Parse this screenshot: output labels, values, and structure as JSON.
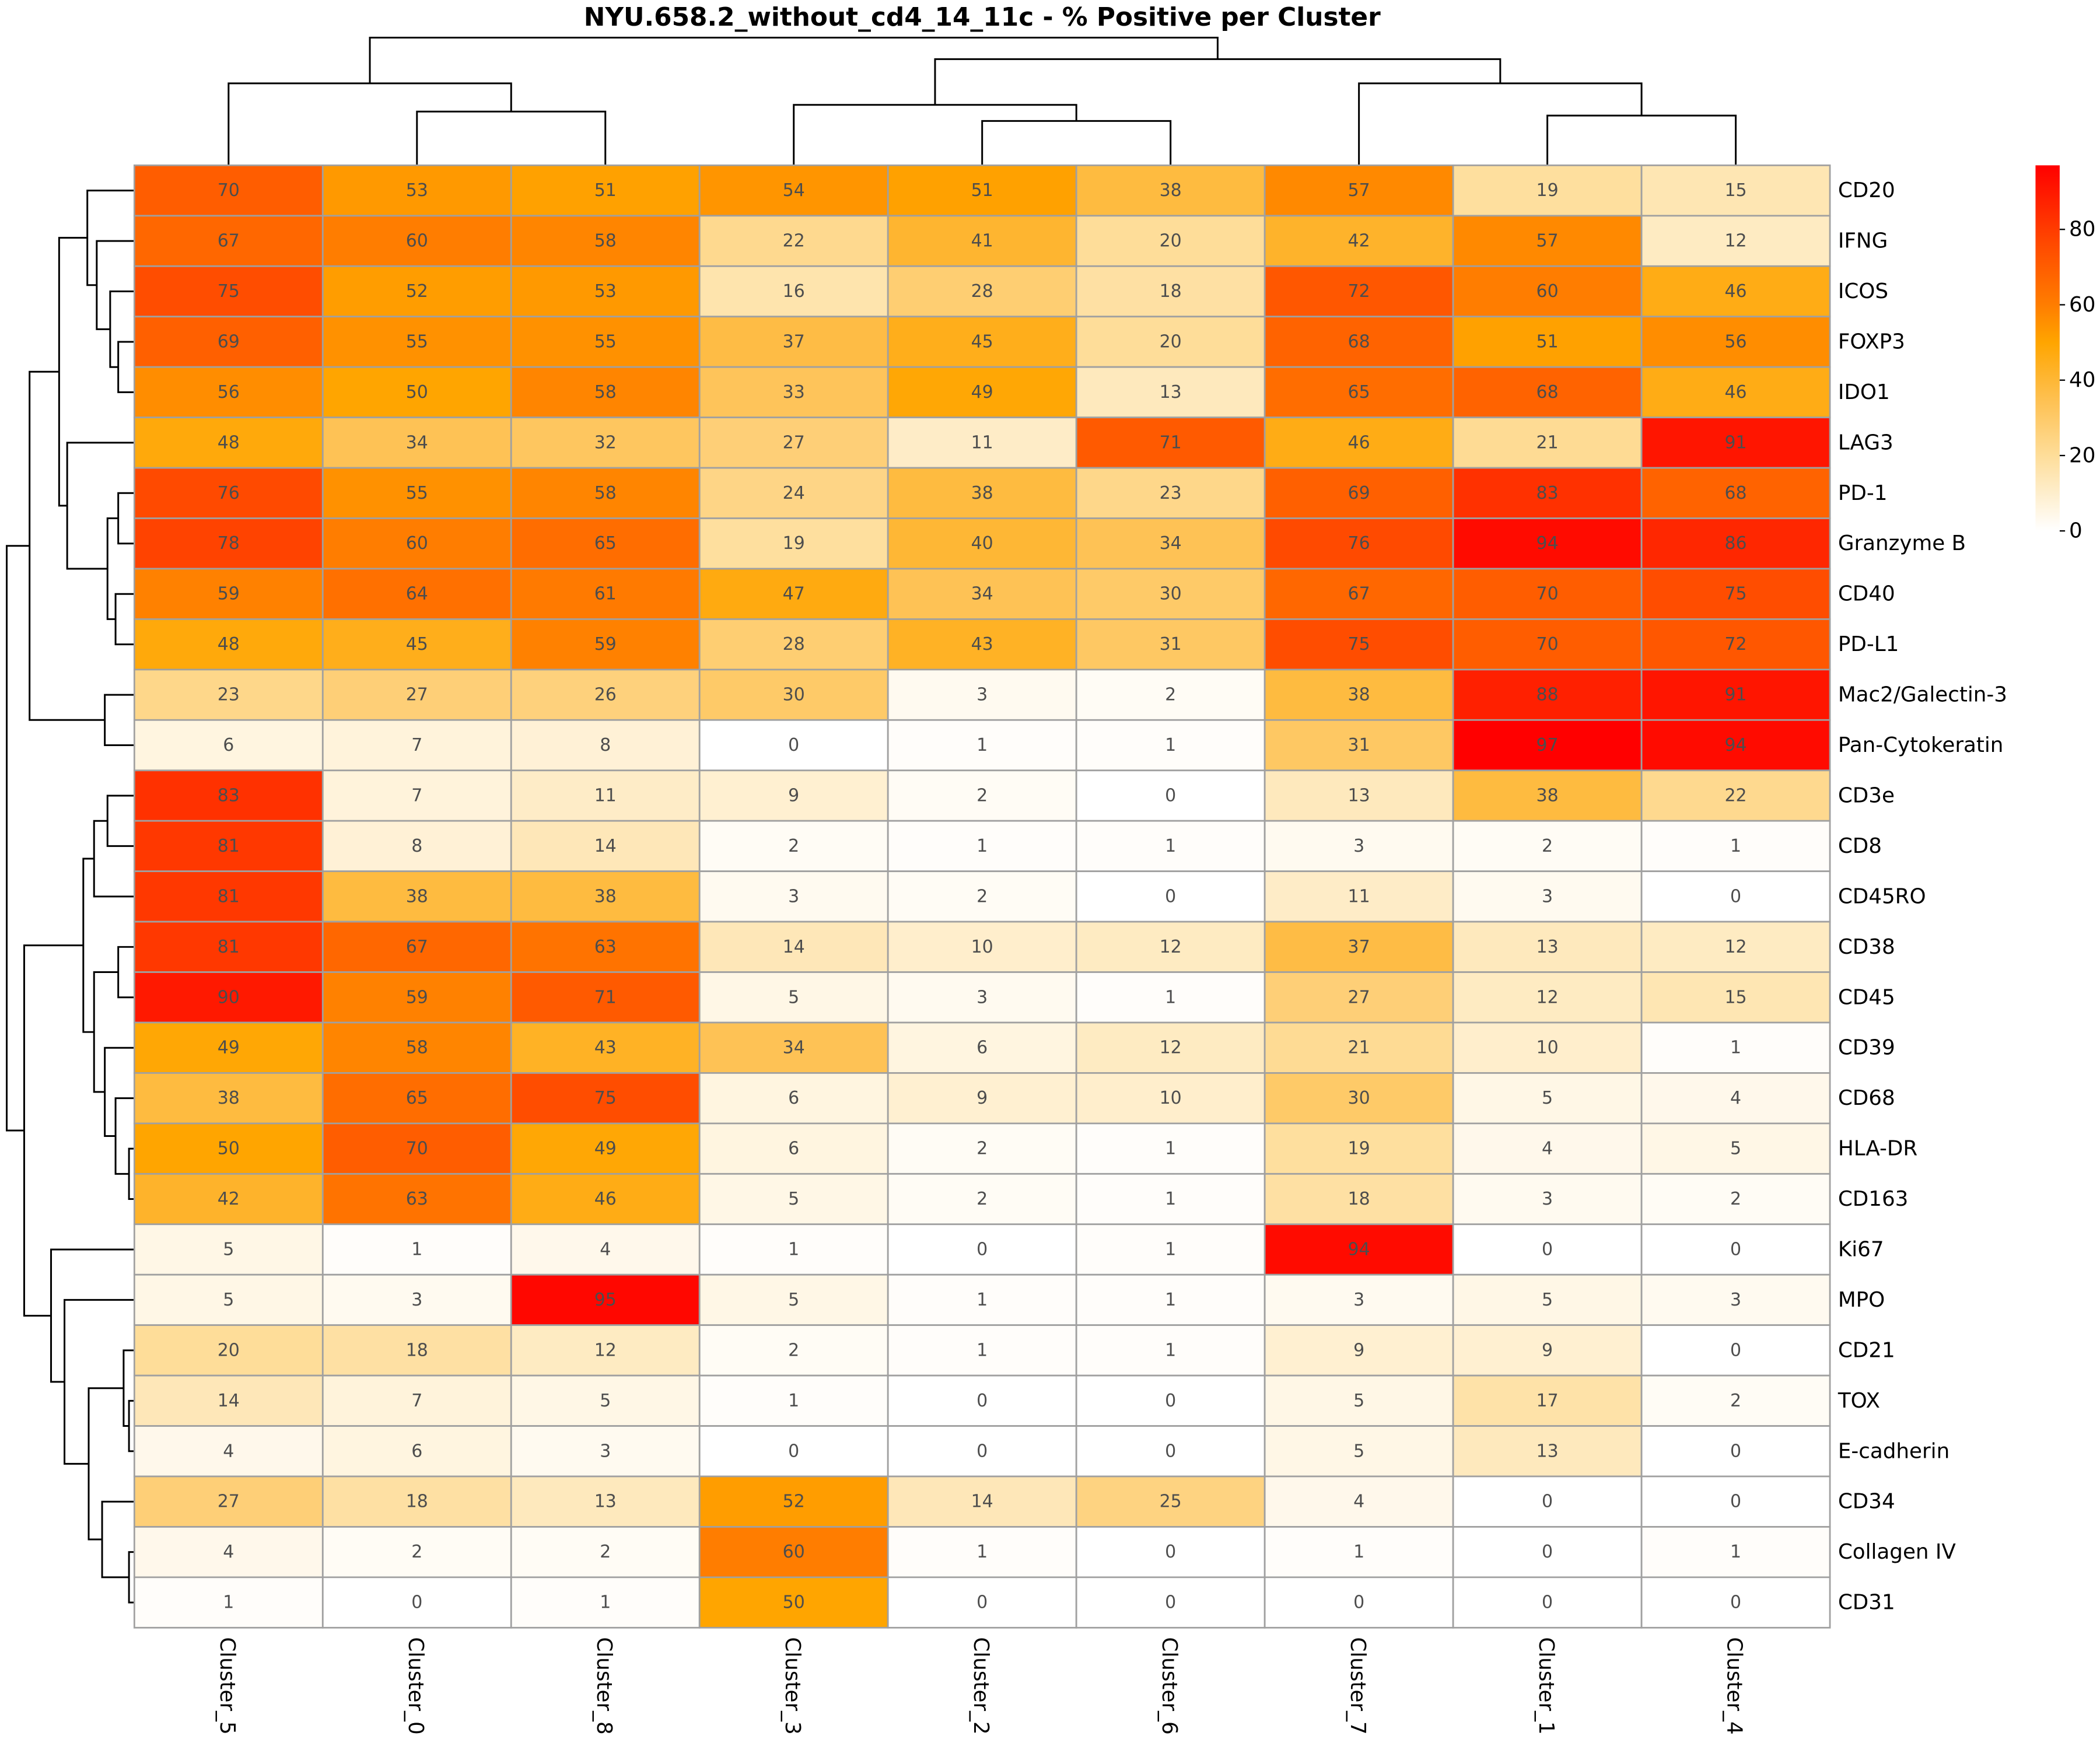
{
  "chart_data": {
    "type": "heatmap",
    "title": "NYU.658.2_without_cd4_14_11c - % Positive per Cluster",
    "columns": [
      "Cluster_5",
      "Cluster_0",
      "Cluster_8",
      "Cluster_3",
      "Cluster_2",
      "Cluster_6",
      "Cluster_7",
      "Cluster_1",
      "Cluster_4"
    ],
    "rows": [
      "CD20",
      "IFNG",
      "ICOS",
      "FOXP3",
      "IDO1",
      "LAG3",
      "PD-1",
      "Granzyme B",
      "CD40",
      "PD-L1",
      "Mac2/Galectin-3",
      "Pan-Cytokeratin",
      "CD3e",
      "CD8",
      "CD45RO",
      "CD38",
      "CD45",
      "CD39",
      "CD68",
      "HLA-DR",
      "CD163",
      "Ki67",
      "MPO",
      "CD21",
      "TOX",
      "E-cadherin",
      "CD34",
      "Collagen IV",
      "CD31"
    ],
    "values": [
      [
        70,
        53,
        51,
        54,
        51,
        38,
        57,
        19,
        15
      ],
      [
        67,
        60,
        58,
        22,
        41,
        20,
        42,
        57,
        12
      ],
      [
        75,
        52,
        53,
        16,
        28,
        18,
        72,
        60,
        46
      ],
      [
        69,
        55,
        55,
        37,
        45,
        20,
        68,
        51,
        56
      ],
      [
        56,
        50,
        58,
        33,
        49,
        13,
        65,
        68,
        46
      ],
      [
        48,
        34,
        32,
        27,
        11,
        71,
        46,
        21,
        91
      ],
      [
        76,
        55,
        58,
        24,
        38,
        23,
        69,
        83,
        68
      ],
      [
        78,
        60,
        65,
        19,
        40,
        34,
        76,
        94,
        86
      ],
      [
        59,
        64,
        61,
        47,
        34,
        30,
        67,
        70,
        75
      ],
      [
        48,
        45,
        59,
        28,
        43,
        31,
        75,
        70,
        72
      ],
      [
        23,
        27,
        26,
        30,
        3,
        2,
        38,
        88,
        91
      ],
      [
        6,
        7,
        8,
        0,
        1,
        1,
        31,
        97,
        94
      ],
      [
        83,
        7,
        11,
        9,
        2,
        0,
        13,
        38,
        22
      ],
      [
        81,
        8,
        14,
        2,
        1,
        1,
        3,
        2,
        1
      ],
      [
        81,
        38,
        38,
        3,
        2,
        0,
        11,
        3,
        0
      ],
      [
        81,
        67,
        63,
        14,
        10,
        12,
        37,
        13,
        12
      ],
      [
        90,
        59,
        71,
        5,
        3,
        1,
        27,
        12,
        15
      ],
      [
        49,
        58,
        43,
        34,
        6,
        12,
        21,
        10,
        1
      ],
      [
        38,
        65,
        75,
        6,
        9,
        10,
        30,
        5,
        4
      ],
      [
        50,
        70,
        49,
        6,
        2,
        1,
        19,
        4,
        5
      ],
      [
        42,
        63,
        46,
        5,
        2,
        1,
        18,
        3,
        2
      ],
      [
        5,
        1,
        4,
        1,
        0,
        1,
        94,
        0,
        0
      ],
      [
        5,
        3,
        95,
        5,
        1,
        1,
        3,
        5,
        3
      ],
      [
        20,
        18,
        12,
        2,
        1,
        1,
        9,
        9,
        0
      ],
      [
        14,
        7,
        5,
        1,
        0,
        0,
        5,
        17,
        2
      ],
      [
        4,
        6,
        3,
        0,
        0,
        0,
        5,
        13,
        0
      ],
      [
        27,
        18,
        13,
        52,
        14,
        25,
        4,
        0,
        0
      ],
      [
        4,
        2,
        2,
        60,
        1,
        0,
        1,
        0,
        1
      ],
      [
        1,
        0,
        1,
        50,
        0,
        0,
        0,
        0,
        0
      ]
    ],
    "colorbar": {
      "ticks": [
        0,
        20,
        40,
        60,
        80
      ],
      "tick_labels": [
        "0",
        "20",
        "40",
        "60",
        "80"
      ],
      "range": [
        0,
        97
      ]
    },
    "colormap": {
      "0": "#ffffff",
      "20": "#fedd99",
      "35": "#fec050",
      "50": "#ffa500",
      "60": "#ff7d00",
      "75": "#ff4d00",
      "97": "#ff0000"
    },
    "grid_color": "#a0a0a0"
  }
}
